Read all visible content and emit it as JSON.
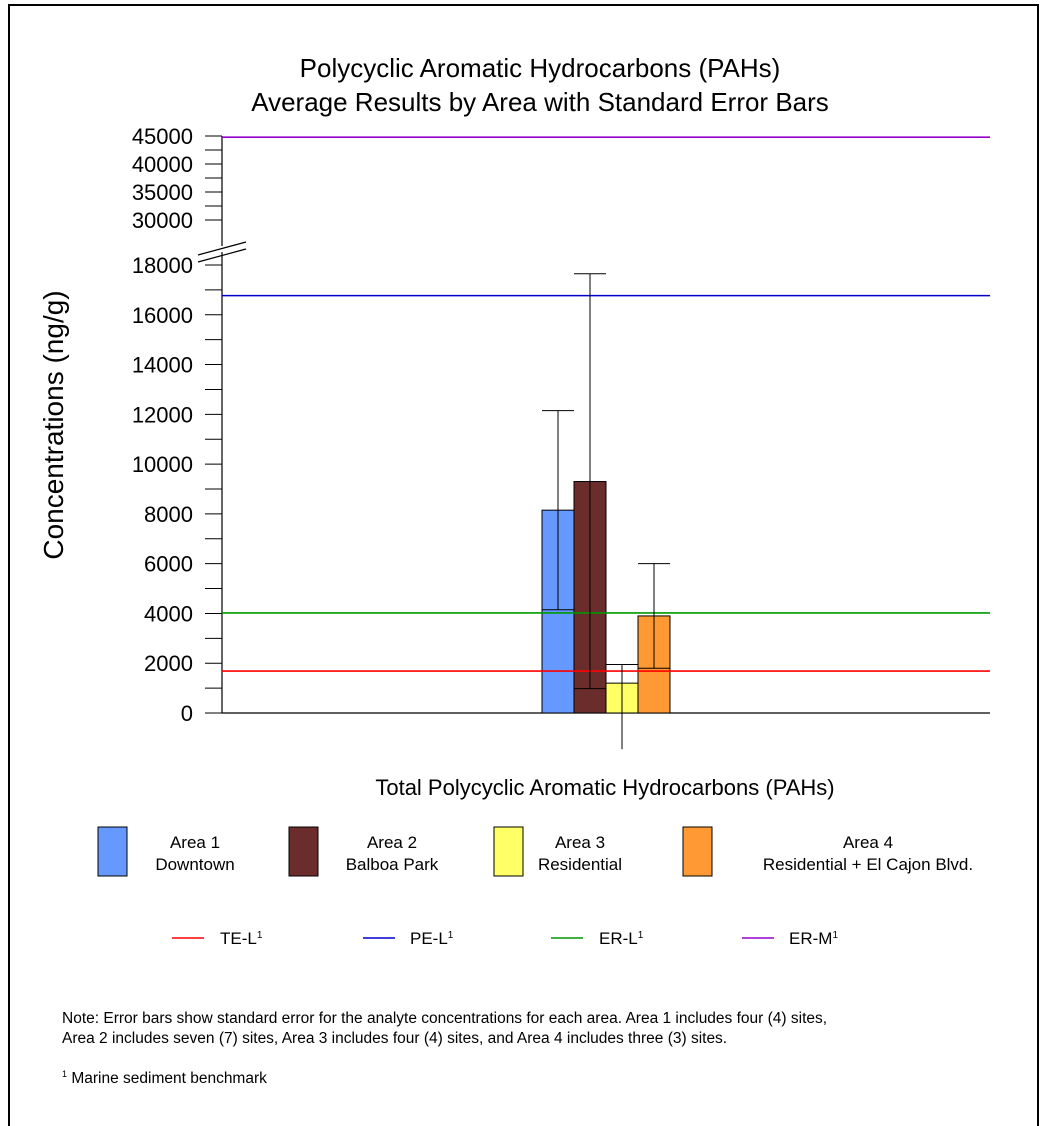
{
  "chart_data": {
    "type": "bar",
    "title": [
      "Polycyclic Aromatic Hydrocarbons (PAHs)",
      "Average Results by Area with Standard Error Bars"
    ],
    "ylabel": "Concentrations (ng/g)",
    "xlabel": "Total Polycyclic Aromatic Hydrocarbons (PAHs)",
    "categories": [
      "Total Polycyclic Aromatic Hydrocarbons (PAHs)"
    ],
    "y_axis": {
      "lower_range": [
        0,
        18000
      ],
      "lower_ticks": [
        "0",
        "2000",
        "4000",
        "6000",
        "8000",
        "10000",
        "12000",
        "14000",
        "16000",
        "18000"
      ],
      "upper_range": [
        30000,
        45000
      ],
      "upper_ticks": [
        "30000",
        "35000",
        "40000",
        "45000"
      ],
      "axis_break": true
    },
    "series": [
      {
        "name": "Area 1\nDowntown",
        "label_lines": [
          "Area 1",
          "Downtown"
        ],
        "value": 8150,
        "error_low": 4150,
        "error_high": 12150,
        "color": "#6699ff"
      },
      {
        "name": "Area 2\nBalboa Park",
        "label_lines": [
          "Area 2",
          "Balboa Park"
        ],
        "value": 9300,
        "error_low": 980,
        "error_high": 17650,
        "color": "#6b2c2c"
      },
      {
        "name": "Area 3\nResidential",
        "label_lines": [
          "Area 3",
          "Residential"
        ],
        "value": 1200,
        "error_low": -1450,
        "error_high": 1950,
        "color": "#ffff66"
      },
      {
        "name": "Area 4\nResidential + El Cajon Blvd.",
        "label_lines": [
          "Area 4",
          "Residential + El Cajon Blvd."
        ],
        "value": 3900,
        "error_low": 1800,
        "error_high": 6000,
        "color": "#ff9933"
      }
    ],
    "benchmarks": [
      {
        "name": "TE-L",
        "value": 1684,
        "color": "#ff0000"
      },
      {
        "name": "PE-L",
        "value": 16770,
        "color": "#0000cc"
      },
      {
        "name": "ER-L",
        "value": 4022,
        "color": "#009900"
      },
      {
        "name": "ER-M",
        "value": 44792,
        "color": "#9900cc"
      }
    ],
    "benchmark_superscript": "1",
    "legend_placement": "bottom",
    "grid": false
  },
  "note": {
    "line1": "Note:  Error bars show standard error for the analyte concentrations for each area.  Area 1 includes four (4) sites,",
    "line2": "Area 2 includes seven (7) sites, Area 3 includes four (4) sites, and Area 4 includes three (3) sites."
  },
  "footnote": {
    "marker": "1",
    "text": " Marine sediment benchmark"
  }
}
